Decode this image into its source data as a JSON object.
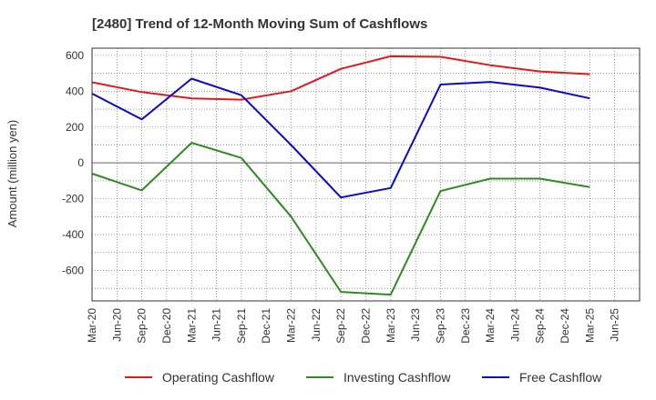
{
  "chart_data": {
    "type": "line",
    "title": "[2480]  Trend of 12-Month Moving Sum of Cashflows",
    "xlabel": "",
    "ylabel": "Amount (million yen)",
    "ylim": [
      -770,
      640
    ],
    "yticks": [
      600,
      400,
      200,
      0,
      -200,
      -400,
      -600
    ],
    "x_ticks": [
      "Mar-20",
      "Jun-20",
      "Sep-20",
      "Dec-20",
      "Mar-21",
      "Jun-21",
      "Sep-21",
      "Dec-21",
      "Mar-22",
      "Jun-22",
      "Sep-22",
      "Dec-22",
      "Mar-23",
      "Jun-23",
      "Sep-23",
      "Dec-23",
      "Mar-24",
      "Jun-24",
      "Sep-24",
      "Dec-24",
      "Mar-25",
      "Jun-25"
    ],
    "grid": true,
    "legend_position": "bottom",
    "series": [
      {
        "name": "Operating Cashflow",
        "color": "#e31a1c",
        "x": [
          "Mar-20",
          "Sep-20",
          "Mar-21",
          "Sep-21",
          "Mar-22",
          "Sep-22",
          "Mar-23",
          "Sep-23",
          "Mar-24",
          "Sep-24",
          "Mar-25"
        ],
        "values": [
          450,
          395,
          360,
          353,
          400,
          525,
          595,
          592,
          545,
          510,
          495
        ]
      },
      {
        "name": "Investing Cashflow",
        "color": "#2e8b22",
        "x": [
          "Mar-20",
          "Sep-20",
          "Mar-21",
          "Sep-21",
          "Mar-22",
          "Sep-22",
          "Mar-23",
          "Sep-23",
          "Mar-24",
          "Sep-24",
          "Mar-25"
        ],
        "values": [
          -60,
          -153,
          112,
          28,
          -300,
          -720,
          -735,
          -157,
          -88,
          -88,
          -135
        ]
      },
      {
        "name": "Free Cashflow",
        "color": "#0a0acd",
        "x": [
          "Mar-20",
          "Sep-20",
          "Mar-21",
          "Sep-21",
          "Mar-22",
          "Sep-22",
          "Mar-23",
          "Sep-23",
          "Mar-24",
          "Sep-24",
          "Mar-25"
        ],
        "values": [
          387,
          243,
          470,
          378,
          100,
          -193,
          -140,
          437,
          452,
          420,
          360
        ]
      }
    ]
  }
}
